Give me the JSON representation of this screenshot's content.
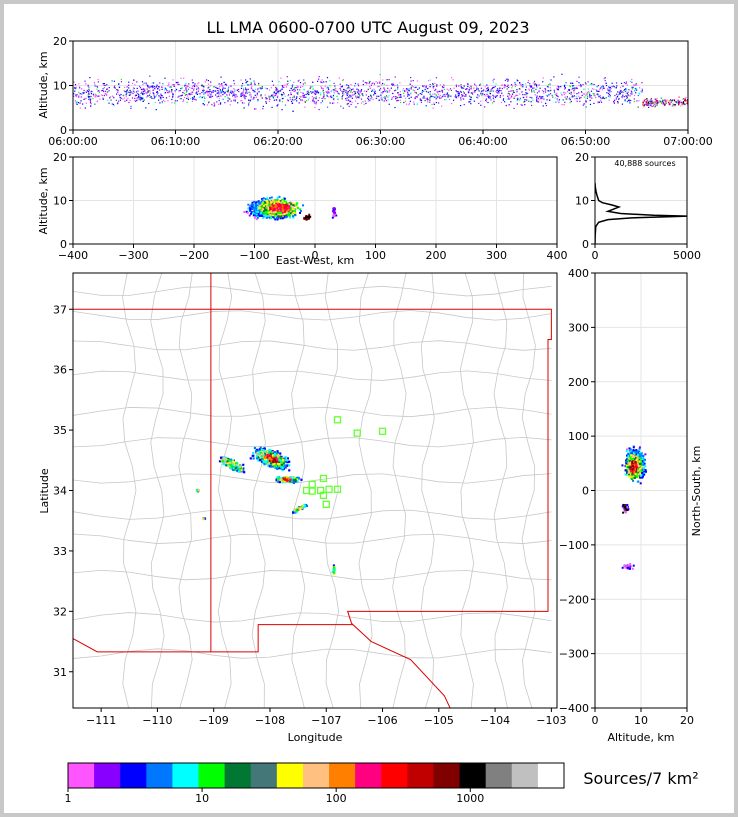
{
  "title": "LL LMA 0600-0700 UTC August 09, 2023",
  "colorbar": {
    "label": "Sources/7 km²",
    "colors": [
      "#ff55ff",
      "#8800ff",
      "#0000ff",
      "#0077ff",
      "#00ffff",
      "#00ff00",
      "#007733",
      "#447777",
      "#ffff00",
      "#ffc080",
      "#ff8000",
      "#ff0080",
      "#ff0000",
      "#c00000",
      "#800000",
      "#000000",
      "#808080",
      "#c0c0c0",
      "#ffffff"
    ],
    "ticks": [
      "1",
      "10",
      "100",
      "1000"
    ]
  },
  "chart_data": [
    {
      "name": "altitude-time",
      "type": "scatter",
      "xlabel": "",
      "ylabel": "Altitude, km",
      "x_ticks": [
        "06:00:00",
        "06:10:00",
        "06:20:00",
        "06:30:00",
        "06:40:00",
        "06:50:00",
        "07:00:00"
      ],
      "xlim_minutes": [
        0,
        60
      ],
      "ylim": [
        0,
        20
      ],
      "y_ticks": [
        "0",
        "10",
        "20"
      ],
      "grid": true,
      "note": "altitude ~3-13 km throughout hour; densest 5-8 km near 06:58"
    },
    {
      "name": "altitude-eastwest",
      "type": "heatmap",
      "xlabel": "East-West, km",
      "ylabel": "Altitude, km",
      "xlim": [
        -400,
        400
      ],
      "x_ticks": [
        "−400",
        "−300",
        "−200",
        "−100",
        "0",
        "100",
        "200",
        "300",
        "400"
      ],
      "ylim": [
        0,
        20
      ],
      "y_ticks": [
        "0",
        "10",
        "20"
      ],
      "grid": true
    },
    {
      "name": "altitude-histogram",
      "type": "line",
      "annotation": "40,888 sources",
      "xlim": [
        0,
        5000
      ],
      "x_ticks": [
        "0",
        "5000"
      ],
      "ylim": [
        0,
        20
      ],
      "y_ticks": [
        "0",
        "10",
        "20"
      ],
      "grid": true,
      "points": [
        [
          0,
          0
        ],
        [
          10,
          2
        ],
        [
          40,
          4
        ],
        [
          200,
          5
        ],
        [
          700,
          5.6
        ],
        [
          2000,
          6
        ],
        [
          4200,
          6.3
        ],
        [
          5000,
          6.4
        ],
        [
          3200,
          6.6
        ],
        [
          1400,
          7
        ],
        [
          700,
          7.5
        ],
        [
          1000,
          8
        ],
        [
          1300,
          8.5
        ],
        [
          900,
          9
        ],
        [
          400,
          9.5
        ],
        [
          200,
          10
        ],
        [
          120,
          11
        ],
        [
          60,
          12
        ],
        [
          20,
          13
        ],
        [
          0,
          14
        ]
      ]
    },
    {
      "name": "plan-view-map",
      "type": "heatmap",
      "xlabel": "Longitude",
      "ylabel": "Latitude",
      "xlim": [
        -111.5,
        -102.9
      ],
      "x_ticks": [
        "−111",
        "−110",
        "−109",
        "−108",
        "−107",
        "−106",
        "−105",
        "−104",
        "−103"
      ],
      "ylim": [
        30.4,
        37.6
      ],
      "y_ticks": [
        "31",
        "32",
        "33",
        "34",
        "35",
        "36",
        "37"
      ],
      "stations_lonlat": [
        [
          -106.8,
          35.17
        ],
        [
          -106.45,
          34.95
        ],
        [
          -106.0,
          34.98
        ],
        [
          -107.35,
          34.0
        ],
        [
          -107.25,
          34.1
        ],
        [
          -107.05,
          34.2
        ],
        [
          -107.1,
          34.0
        ],
        [
          -107.05,
          33.92
        ],
        [
          -106.95,
          34.02
        ],
        [
          -106.8,
          34.02
        ],
        [
          -107.0,
          33.77
        ],
        [
          -107.25,
          33.99
        ]
      ]
    },
    {
      "name": "altitude-northsouth",
      "type": "heatmap",
      "xlabel": "Altitude, km",
      "ylabel": "North-South, km",
      "xlim": [
        0,
        20
      ],
      "x_ticks": [
        "0",
        "10",
        "20"
      ],
      "ylim": [
        -400,
        400
      ],
      "y_ticks": [
        "−400",
        "−300",
        "−200",
        "−100",
        "0",
        "100",
        "200",
        "300",
        "400"
      ],
      "grid": true
    }
  ]
}
